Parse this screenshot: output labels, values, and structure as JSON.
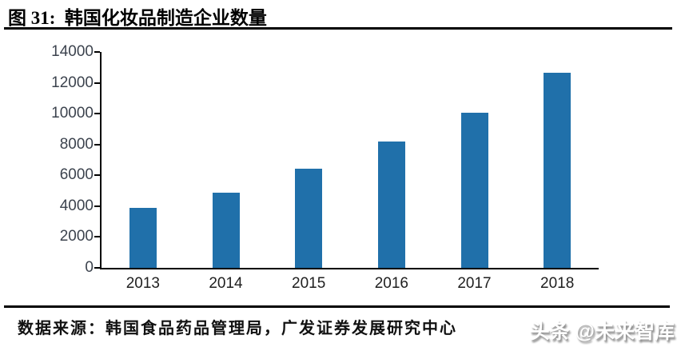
{
  "figure": {
    "title": "图 31:  韩国化妆品制造企业数量",
    "source": "数据来源：韩国食品药品管理局，广发证券发展研究中心",
    "watermark": "头条 @未来智库"
  },
  "colors": {
    "bar": "#2070AA",
    "axis": "#000000",
    "rule": "#000000",
    "y_tick_label": "#3c434e",
    "x_tick_label": "#1f1f1f",
    "watermark_shadow": "#8f8f8f"
  },
  "chart_data": {
    "type": "bar",
    "title": "韩国化妆品制造企业数量",
    "categories": [
      "2013",
      "2014",
      "2015",
      "2016",
      "2017",
      "2018"
    ],
    "values": [
      3884,
      4853,
      6422,
      8175,
      10080,
      12673
    ],
    "xlabel": "",
    "ylabel": "",
    "ylim": [
      0,
      14000
    ],
    "yticks": [
      0,
      2000,
      4000,
      6000,
      8000,
      10000,
      12000,
      14000
    ],
    "grid": false,
    "legend": "none",
    "bar_color": "#2070AA"
  }
}
